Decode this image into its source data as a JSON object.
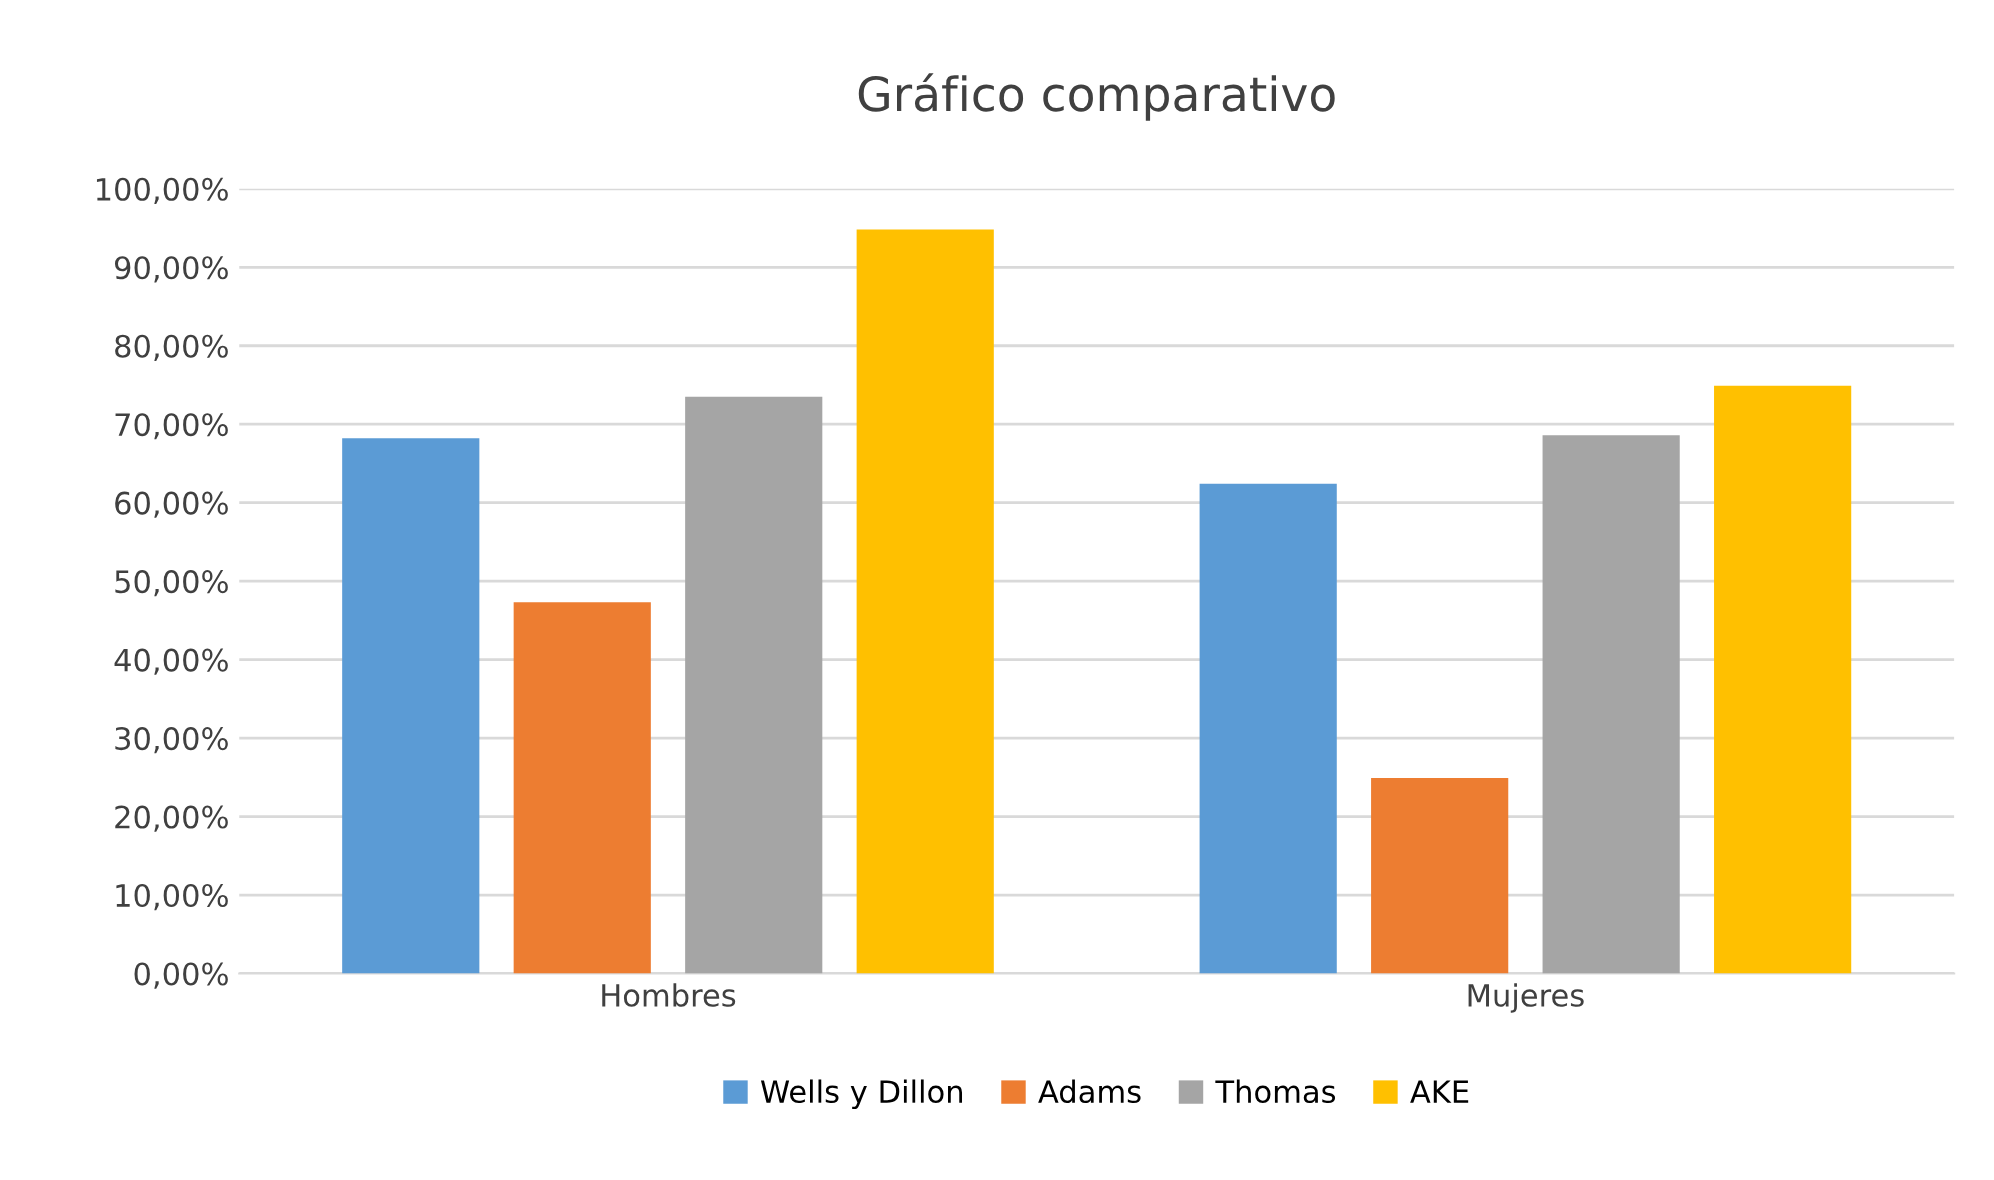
{
  "chart_data": {
    "type": "bar",
    "title": "Gráfico comparativo",
    "categories": [
      "Hombres",
      "Mujeres"
    ],
    "series": [
      {
        "name": "Wells y Dillon",
        "color": "#5b9bd5",
        "values": [
          68.2,
          62.4
        ]
      },
      {
        "name": "Adams",
        "color": "#ed7d31",
        "values": [
          47.3,
          24.9
        ]
      },
      {
        "name": "Thomas",
        "color": "#a5a5a5",
        "values": [
          73.5,
          68.6
        ]
      },
      {
        "name": "AKE",
        "color": "#ffc000",
        "values": [
          94.8,
          74.9
        ]
      }
    ],
    "ylim": [
      0,
      100
    ],
    "yticks": [
      {
        "value": 0,
        "label": "0,00%"
      },
      {
        "value": 10,
        "label": "10,00%"
      },
      {
        "value": 20,
        "label": "20,00%"
      },
      {
        "value": 30,
        "label": "30,00%"
      },
      {
        "value": 40,
        "label": "40,00%"
      },
      {
        "value": 50,
        "label": "50,00%"
      },
      {
        "value": 60,
        "label": "60,00%"
      },
      {
        "value": 70,
        "label": "70,00%"
      },
      {
        "value": 80,
        "label": "80,00%"
      },
      {
        "value": 90,
        "label": "90,00%"
      },
      {
        "value": 100,
        "label": "100,00%"
      }
    ],
    "grid": "y",
    "legend": "bottom"
  }
}
